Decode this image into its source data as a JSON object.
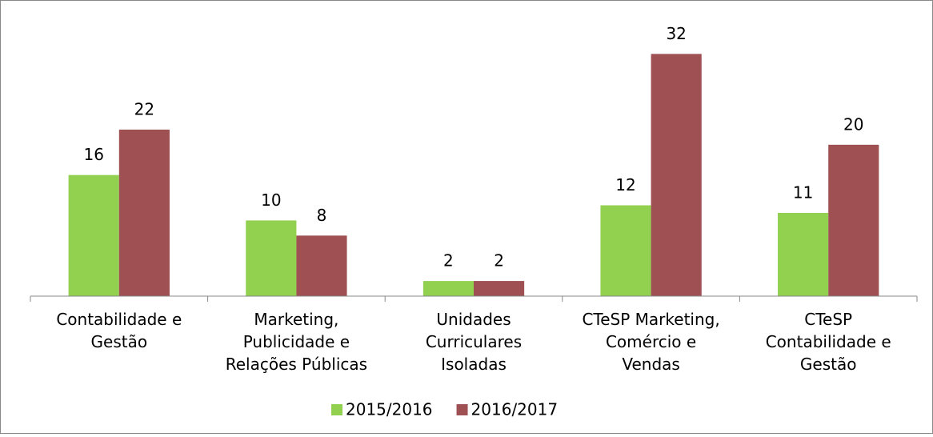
{
  "chart_data": {
    "type": "bar",
    "categories": [
      "Contabilidade e\nGestão",
      "Marketing,\nPublicidade e\nRelações Públicas",
      "Unidades\nCurriculares\nIsoladas",
      "CTeSP Marketing,\nComércio e\nVendas",
      "CTeSP\nContabilidade e\nGestão"
    ],
    "series": [
      {
        "name": "2015/2016",
        "color": "#92d050",
        "values": [
          16,
          10,
          2,
          12,
          11
        ]
      },
      {
        "name": "2016/2017",
        "color": "#9e5052",
        "values": [
          22,
          8,
          2,
          32,
          20
        ]
      }
    ],
    "ylim": [
      0,
      35
    ],
    "legend": "bottom"
  }
}
